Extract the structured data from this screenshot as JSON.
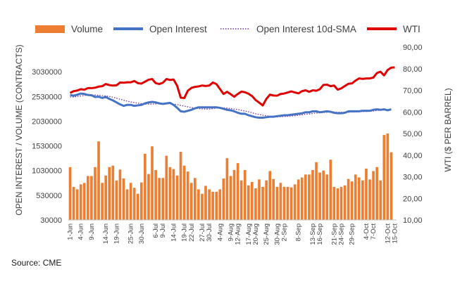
{
  "source_note": "Source: CME",
  "chart_data": {
    "type": "bar+line",
    "legend": {
      "position": "top",
      "entries": [
        {
          "label": "Volume",
          "style": "bar",
          "color": "#ED7D31"
        },
        {
          "label": "Open Interest",
          "style": "line",
          "color": "#4472C4"
        },
        {
          "label": "Open Interest 10d-SMA",
          "style": "dotted",
          "color": "#7030A0"
        },
        {
          "label": "WTI",
          "style": "line",
          "color": "#E00000"
        }
      ]
    },
    "y_left": {
      "label": "OPEN INTEREST / VOLUME (CONTRACTS)",
      "ticks": [
        "30000",
        "530000",
        "1030000",
        "1530000",
        "2030000",
        "2530000",
        "3030000"
      ],
      "tick_values": [
        30000,
        530000,
        1030000,
        1530000,
        2030000,
        2530000,
        3030000
      ],
      "ylim": [
        30000,
        3530000
      ]
    },
    "y_right": {
      "label": "WTI ($ PER BARREL)",
      "ticks": [
        "10,00",
        "20,00",
        "30,00",
        "40,00",
        "50,00",
        "60,00",
        "70,00",
        "80,00",
        "90,00"
      ],
      "tick_values": [
        10,
        20,
        30,
        40,
        50,
        60,
        70,
        80,
        90
      ],
      "ylim": [
        10,
        90
      ]
    },
    "x_ticks": [
      "1-Jun",
      "4-Jun",
      "9-Jun",
      "14-Jun",
      "19-Jun",
      "25-Jun",
      "30-Jun",
      "6-Jul",
      "9-Jul",
      "14-Jul",
      "19-Jul",
      "22-Jul",
      "27-Jul",
      "30-Jul",
      "4-Aug",
      "9-Aug",
      "12-Aug",
      "17-Aug",
      "20-Aug",
      "25-Aug",
      "30-Aug",
      "2-Sep",
      "8-Sep",
      "13-Sep",
      "16-Sep",
      "21-Sep",
      "24-Sep",
      "29-Sep",
      "4-Oct",
      "7-Oct",
      "12-Oct",
      "15-Oct"
    ],
    "x_tick_index": [
      0,
      3,
      6,
      10,
      13,
      17,
      20,
      24,
      26,
      29,
      32,
      34,
      37,
      39,
      42,
      45,
      47,
      50,
      52,
      55,
      58,
      60,
      64,
      68,
      70,
      74,
      76,
      79,
      83,
      85,
      89,
      91
    ],
    "n_points": 92,
    "series": [
      {
        "name": "Volume",
        "type": "bar",
        "color": "#ED7D31",
        "values": [
          1100000,
          700000,
          650000,
          750000,
          780000,
          920000,
          920000,
          1100000,
          1620000,
          780000,
          930000,
          1100000,
          1130000,
          830000,
          1050000,
          870000,
          650000,
          780000,
          680000,
          560000,
          790000,
          1370000,
          960000,
          1520000,
          1040000,
          880000,
          880000,
          1330000,
          1100000,
          1060000,
          930000,
          1410000,
          1130000,
          1010000,
          780000,
          880000,
          650000,
          560000,
          720000,
          650000,
          600000,
          600000,
          650000,
          870000,
          1280000,
          920000,
          1040000,
          1180000,
          830000,
          1040000,
          730000,
          800000,
          670000,
          850000,
          700000,
          830000,
          1020000,
          860000,
          700000,
          780000,
          700000,
          700000,
          690000,
          750000,
          850000,
          890000,
          950000,
          950000,
          1040000,
          1200000,
          990000,
          1030000,
          950000,
          1250000,
          700000,
          670000,
          700000,
          730000,
          860000,
          810000,
          950000,
          890000,
          830000,
          1070000,
          850000,
          1020000,
          1100000,
          830000,
          1750000,
          1780000,
          1400000,
          null
        ]
      },
      {
        "name": "Open Interest",
        "type": "line",
        "color": "#4472C4",
        "values": [
          2560000,
          2545000,
          2565000,
          2590000,
          2580000,
          2560000,
          2555000,
          2520000,
          2525000,
          2500000,
          2520000,
          2480000,
          2450000,
          2410000,
          2370000,
          2340000,
          2360000,
          2360000,
          2340000,
          2350000,
          2360000,
          2390000,
          2410000,
          2420000,
          2410000,
          2390000,
          2380000,
          2390000,
          2400000,
          2360000,
          2300000,
          2230000,
          2220000,
          2240000,
          2260000,
          2290000,
          2310000,
          2310000,
          2310000,
          2310000,
          2310000,
          2310000,
          2300000,
          2280000,
          2260000,
          2250000,
          2230000,
          2200000,
          2180000,
          2180000,
          2150000,
          2130000,
          2110000,
          2100000,
          2100000,
          2110000,
          2120000,
          2120000,
          2130000,
          2140000,
          2150000,
          2150000,
          2160000,
          2170000,
          2180000,
          2190000,
          2210000,
          2210000,
          2230000,
          2230000,
          2210000,
          2220000,
          2230000,
          2220000,
          2200000,
          2190000,
          2190000,
          2200000,
          2230000,
          2230000,
          2230000,
          2230000,
          2240000,
          2240000,
          2240000,
          2260000,
          2270000,
          2260000,
          2270000,
          2250000,
          2270000,
          null
        ]
      },
      {
        "name": "Open Interest 10d-SMA",
        "type": "dotted",
        "color": "#7030A0",
        "values": [
          2520000,
          2520000,
          2530000,
          2540000,
          2550000,
          2560000,
          2560000,
          2560000,
          2555000,
          2545000,
          2540000,
          2530000,
          2515000,
          2495000,
          2475000,
          2455000,
          2435000,
          2420000,
          2405000,
          2395000,
          2385000,
          2375000,
          2375000,
          2375000,
          2380000,
          2385000,
          2385000,
          2385000,
          2380000,
          2375000,
          2365000,
          2350000,
          2335000,
          2320000,
          2305000,
          2295000,
          2285000,
          2280000,
          2275000,
          2275000,
          2285000,
          2295000,
          2300000,
          2300000,
          2295000,
          2285000,
          2275000,
          2265000,
          2250000,
          2235000,
          2220000,
          2200000,
          2180000,
          2165000,
          2150000,
          2140000,
          2130000,
          2125000,
          2120000,
          2120000,
          2125000,
          2130000,
          2135000,
          2140000,
          2150000,
          2160000,
          2170000,
          2175000,
          2185000,
          2195000,
          2200000,
          2205000,
          2210000,
          2215000,
          2215000,
          2210000,
          2210000,
          2210000,
          2210000,
          2215000,
          2215000,
          2220000,
          2225000,
          2225000,
          2230000,
          2235000,
          2245000,
          2250000,
          2255000,
          2260000,
          2265000,
          null
        ]
      },
      {
        "name": "WTI",
        "type": "line",
        "color": "#E00000",
        "axis": "right",
        "values": [
          68.8,
          69.6,
          69.9,
          70.5,
          70.3,
          71.0,
          71.0,
          71.2,
          71.7,
          71.9,
          72.9,
          72.4,
          72.2,
          72.3,
          73.6,
          73.5,
          73.7,
          73.7,
          74.3,
          73.3,
          73.1,
          74.0,
          74.9,
          75.2,
          73.3,
          72.9,
          73.5,
          75.2,
          74.8,
          75.0,
          72.1,
          66.6,
          66.4,
          69.8,
          71.1,
          71.6,
          71.8,
          72.2,
          72.0,
          72.2,
          73.6,
          72.9,
          70.6,
          68.3,
          69.3,
          68.2,
          67.0,
          68.3,
          69.4,
          69.1,
          68.4,
          67.3,
          65.5,
          64.3,
          63.0,
          66.0,
          68.0,
          67.6,
          67.5,
          68.3,
          68.5,
          69.0,
          69.5,
          69.0,
          68.6,
          69.6,
          70.0,
          69.3,
          70.0,
          69.8,
          70.5,
          72.5,
          72.6,
          71.9,
          72.2,
          70.3,
          70.9,
          72.0,
          73.0,
          73.2,
          74.5,
          75.5,
          75.3,
          75.5,
          75.5,
          75.9,
          78.0,
          78.6,
          76.9,
          79.4,
          80.5,
          80.6
        ]
      }
    ],
    "grid": false
  }
}
